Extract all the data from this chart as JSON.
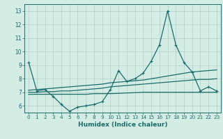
{
  "x": [
    0,
    1,
    2,
    3,
    4,
    5,
    6,
    7,
    8,
    9,
    10,
    11,
    12,
    13,
    14,
    15,
    16,
    17,
    18,
    19,
    20,
    21,
    22,
    23
  ],
  "line_main": [
    9.2,
    7.1,
    7.2,
    6.7,
    6.1,
    5.6,
    5.9,
    6.0,
    6.1,
    6.3,
    7.2,
    8.6,
    7.8,
    8.0,
    8.4,
    9.3,
    10.5,
    13.0,
    10.5,
    9.2,
    8.5,
    7.1,
    7.4,
    7.1
  ],
  "trend_high": [
    7.15,
    7.2,
    7.25,
    7.3,
    7.35,
    7.4,
    7.45,
    7.5,
    7.55,
    7.6,
    7.7,
    7.75,
    7.8,
    7.85,
    7.9,
    8.0,
    8.1,
    8.2,
    8.3,
    8.4,
    8.5,
    8.55,
    8.6,
    8.65
  ],
  "trend_mid": [
    7.0,
    7.0,
    7.05,
    7.05,
    7.1,
    7.1,
    7.15,
    7.2,
    7.25,
    7.3,
    7.4,
    7.45,
    7.5,
    7.55,
    7.6,
    7.65,
    7.7,
    7.75,
    7.8,
    7.85,
    7.9,
    7.95,
    7.95,
    8.0
  ],
  "trend_low": [
    6.85,
    6.85,
    6.85,
    6.85,
    6.85,
    6.85,
    6.85,
    6.85,
    6.9,
    6.9,
    6.9,
    6.92,
    6.95,
    6.97,
    7.0,
    7.0,
    7.0,
    7.0,
    7.0,
    7.0,
    7.0,
    7.0,
    7.0,
    7.0
  ],
  "line_color": "#1a6b6b",
  "bg_color": "#d4ede4",
  "grid_color": "#b0cfca",
  "xlabel": "Humidex (Indice chaleur)",
  "ylim": [
    5.5,
    13.5
  ],
  "xlim": [
    -0.5,
    23.5
  ],
  "yticks": [
    6,
    7,
    8,
    9,
    10,
    11,
    12,
    13
  ],
  "xticks": [
    0,
    1,
    2,
    3,
    4,
    5,
    6,
    7,
    8,
    9,
    10,
    11,
    12,
    13,
    14,
    15,
    16,
    17,
    18,
    19,
    20,
    21,
    22,
    23
  ]
}
